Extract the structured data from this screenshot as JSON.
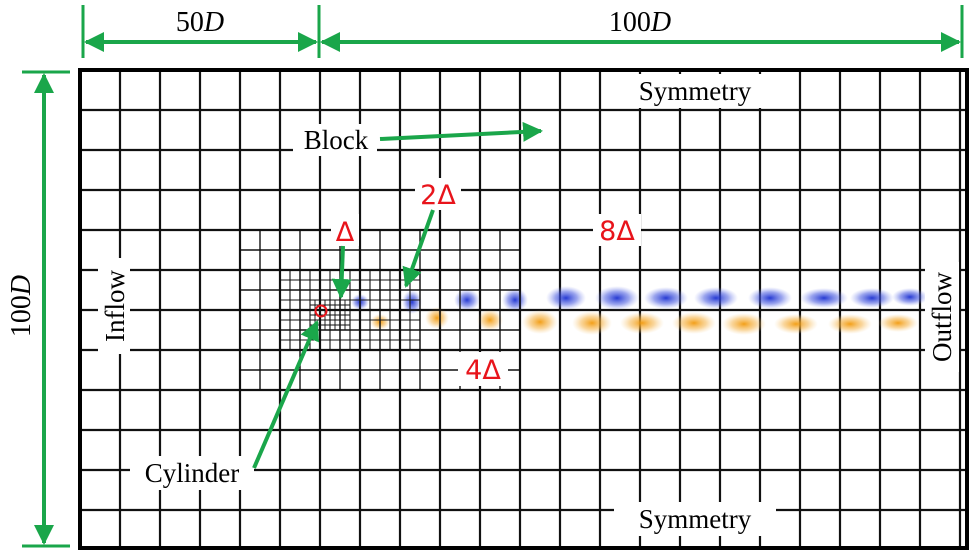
{
  "dimensions": {
    "left_width": "50",
    "right_width": "100",
    "height": "100",
    "unit": "D"
  },
  "labels": {
    "top_boundary": "Symmetry",
    "bottom_boundary": "Symmetry",
    "inflow": "Inflow",
    "outflow": "Outflow",
    "block": "Block",
    "cylinder": "Cylinder"
  },
  "resolutions": {
    "finest": "Δ",
    "level2": "2Δ",
    "level3": "4Δ",
    "coarsest": "8Δ"
  },
  "colors": {
    "annotation_arrow": "#1aa64a",
    "resolution_text": "#e8141b",
    "vortex_positive": "#2a3fd1",
    "vortex_negative": "#f2a316",
    "cylinder_outline": "#e8141b"
  }
}
